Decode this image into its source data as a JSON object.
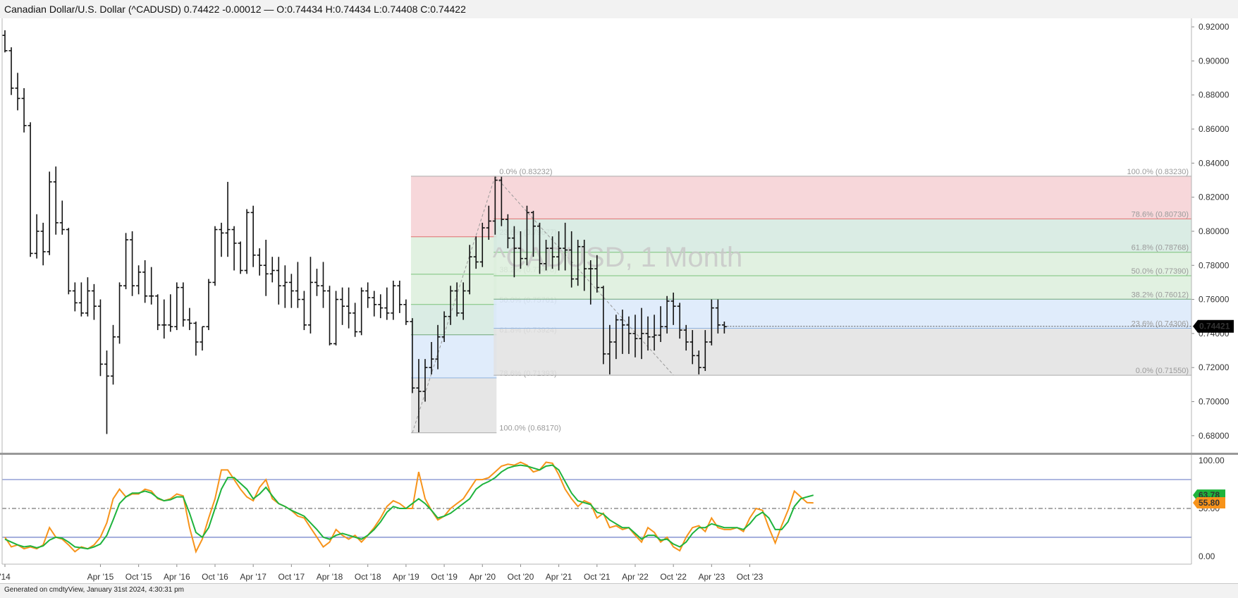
{
  "header": {
    "title": "Canadian Dollar/U.S. Dollar (^CADUSD) 0.74422 -0.00012 — O:0.74434 H:0.74434 L:0.74408 C:0.74422"
  },
  "footer": {
    "text": "Generated on cmdtyView, January 31st 2024, 4:30:31 pm"
  },
  "chart_data": {
    "type": "ohlc",
    "watermark": "^CADUSD, 1 Month",
    "price_axis": {
      "ylim": [
        0.67,
        0.925
      ],
      "ticks": [
        "0.92000",
        "0.90000",
        "0.88000",
        "0.86000",
        "0.84000",
        "0.82000",
        "0.80000",
        "0.78000",
        "0.76000",
        "0.74000",
        "0.72000",
        "0.70000",
        "0.68000"
      ],
      "tick_values": [
        0.92,
        0.9,
        0.88,
        0.86,
        0.84,
        0.82,
        0.8,
        0.78,
        0.76,
        0.74,
        0.72,
        0.7,
        0.68
      ]
    },
    "last_price": {
      "label": "0.74421",
      "value": 0.74421
    },
    "x_labels": [
      {
        "label": "'14",
        "index": 0
      },
      {
        "label": "Apr '15",
        "index": 15
      },
      {
        "label": "Oct '15",
        "index": 21
      },
      {
        "label": "Apr '16",
        "index": 27
      },
      {
        "label": "Oct '16",
        "index": 33
      },
      {
        "label": "Apr '17",
        "index": 39
      },
      {
        "label": "Oct '17",
        "index": 45
      },
      {
        "label": "Apr '18",
        "index": 51
      },
      {
        "label": "Oct '18",
        "index": 57
      },
      {
        "label": "Apr '19",
        "index": 63
      },
      {
        "label": "Oct '19",
        "index": 69
      },
      {
        "label": "Apr '20",
        "index": 75
      },
      {
        "label": "Oct '20",
        "index": 81
      },
      {
        "label": "Apr '21",
        "index": 87
      },
      {
        "label": "Oct '21",
        "index": 93
      },
      {
        "label": "Apr '22",
        "index": 99
      },
      {
        "label": "Oct '22",
        "index": 105
      },
      {
        "label": "Apr '23",
        "index": 111
      },
      {
        "label": "Oct '23",
        "index": 117
      }
    ],
    "bars": [
      [
        0.915,
        0.918,
        0.905,
        0.906
      ],
      [
        0.906,
        0.908,
        0.88,
        0.884
      ],
      [
        0.884,
        0.893,
        0.871,
        0.878
      ],
      [
        0.878,
        0.884,
        0.858,
        0.862
      ],
      [
        0.862,
        0.864,
        0.785,
        0.787
      ],
      [
        0.787,
        0.81,
        0.784,
        0.8
      ],
      [
        0.8,
        0.805,
        0.78,
        0.788
      ],
      [
        0.788,
        0.835,
        0.786,
        0.829
      ],
      [
        0.829,
        0.838,
        0.798,
        0.805
      ],
      [
        0.805,
        0.818,
        0.798,
        0.801
      ],
      [
        0.801,
        0.802,
        0.763,
        0.765
      ],
      [
        0.765,
        0.77,
        0.753,
        0.758
      ],
      [
        0.758,
        0.77,
        0.75,
        0.752
      ],
      [
        0.752,
        0.773,
        0.75,
        0.765
      ],
      [
        0.765,
        0.769,
        0.748,
        0.756
      ],
      [
        0.756,
        0.76,
        0.715,
        0.722
      ],
      [
        0.722,
        0.73,
        0.681,
        0.715
      ],
      [
        0.715,
        0.745,
        0.71,
        0.738
      ],
      [
        0.738,
        0.77,
        0.734,
        0.768
      ],
      [
        0.768,
        0.799,
        0.766,
        0.795
      ],
      [
        0.795,
        0.8,
        0.762,
        0.768
      ],
      [
        0.768,
        0.78,
        0.763,
        0.776
      ],
      [
        0.776,
        0.783,
        0.758,
        0.762
      ],
      [
        0.762,
        0.779,
        0.757,
        0.762
      ],
      [
        0.762,
        0.763,
        0.742,
        0.745
      ],
      [
        0.745,
        0.76,
        0.737,
        0.745
      ],
      [
        0.745,
        0.763,
        0.741,
        0.744
      ],
      [
        0.744,
        0.77,
        0.742,
        0.767
      ],
      [
        0.767,
        0.77,
        0.744,
        0.748
      ],
      [
        0.748,
        0.755,
        0.742,
        0.746
      ],
      [
        0.746,
        0.747,
        0.727,
        0.735
      ],
      [
        0.735,
        0.744,
        0.73,
        0.744
      ],
      [
        0.744,
        0.772,
        0.742,
        0.77
      ],
      [
        0.77,
        0.803,
        0.768,
        0.801
      ],
      [
        0.801,
        0.805,
        0.785,
        0.799
      ],
      [
        0.799,
        0.829,
        0.785,
        0.801
      ],
      [
        0.801,
        0.803,
        0.777,
        0.793
      ],
      [
        0.793,
        0.794,
        0.775,
        0.777
      ],
      [
        0.777,
        0.813,
        0.775,
        0.811
      ],
      [
        0.811,
        0.815,
        0.779,
        0.786
      ],
      [
        0.786,
        0.79,
        0.774,
        0.78
      ],
      [
        0.78,
        0.795,
        0.762,
        0.775
      ],
      [
        0.775,
        0.785,
        0.77,
        0.777
      ],
      [
        0.777,
        0.785,
        0.757,
        0.768
      ],
      [
        0.768,
        0.78,
        0.755,
        0.77
      ],
      [
        0.77,
        0.775,
        0.755,
        0.765
      ],
      [
        0.765,
        0.782,
        0.755,
        0.76
      ],
      [
        0.76,
        0.765,
        0.742,
        0.745
      ],
      [
        0.745,
        0.785,
        0.74,
        0.77
      ],
      [
        0.77,
        0.778,
        0.762,
        0.768
      ],
      [
        0.768,
        0.782,
        0.755,
        0.765
      ],
      [
        0.765,
        0.768,
        0.733,
        0.734
      ],
      [
        0.734,
        0.765,
        0.733,
        0.76
      ],
      [
        0.76,
        0.767,
        0.745,
        0.756
      ],
      [
        0.756,
        0.767,
        0.743,
        0.752
      ],
      [
        0.752,
        0.758,
        0.738,
        0.741
      ],
      [
        0.741,
        0.767,
        0.739,
        0.765
      ],
      [
        0.765,
        0.77,
        0.755,
        0.761
      ],
      [
        0.761,
        0.765,
        0.75,
        0.757
      ],
      [
        0.757,
        0.763,
        0.749,
        0.755
      ],
      [
        0.755,
        0.767,
        0.748,
        0.752
      ],
      [
        0.752,
        0.771,
        0.748,
        0.768
      ],
      [
        0.768,
        0.771,
        0.752,
        0.757
      ],
      [
        0.757,
        0.76,
        0.745,
        0.747
      ],
      [
        0.747,
        0.749,
        0.705,
        0.708
      ],
      [
        0.708,
        0.725,
        0.682,
        0.706
      ],
      [
        0.706,
        0.725,
        0.7,
        0.72
      ],
      [
        0.72,
        0.735,
        0.716,
        0.725
      ],
      [
        0.725,
        0.745,
        0.719,
        0.738
      ],
      [
        0.738,
        0.753,
        0.735,
        0.75
      ],
      [
        0.75,
        0.768,
        0.745,
        0.765
      ],
      [
        0.765,
        0.77,
        0.75,
        0.752
      ],
      [
        0.752,
        0.77,
        0.748,
        0.765
      ],
      [
        0.765,
        0.792,
        0.763,
        0.785
      ],
      [
        0.785,
        0.797,
        0.778,
        0.782
      ],
      [
        0.782,
        0.805,
        0.779,
        0.802
      ],
      [
        0.802,
        0.815,
        0.795,
        0.806
      ],
      [
        0.806,
        0.832,
        0.798,
        0.83
      ],
      [
        0.83,
        0.832,
        0.803,
        0.807
      ],
      [
        0.807,
        0.81,
        0.79,
        0.796
      ],
      [
        0.796,
        0.803,
        0.773,
        0.79
      ],
      [
        0.79,
        0.8,
        0.778,
        0.784
      ],
      [
        0.784,
        0.815,
        0.78,
        0.811
      ],
      [
        0.811,
        0.812,
        0.785,
        0.803
      ],
      [
        0.803,
        0.805,
        0.775,
        0.781
      ],
      [
        0.781,
        0.795,
        0.777,
        0.79
      ],
      [
        0.79,
        0.797,
        0.778,
        0.785
      ],
      [
        0.785,
        0.8,
        0.777,
        0.79
      ],
      [
        0.79,
        0.805,
        0.777,
        0.789
      ],
      [
        0.789,
        0.8,
        0.767,
        0.772
      ],
      [
        0.772,
        0.795,
        0.768,
        0.791
      ],
      [
        0.791,
        0.795,
        0.765,
        0.778
      ],
      [
        0.778,
        0.783,
        0.757,
        0.778
      ],
      [
        0.778,
        0.786,
        0.764,
        0.767
      ],
      [
        0.767,
        0.768,
        0.722,
        0.728
      ],
      [
        0.728,
        0.745,
        0.716,
        0.735
      ],
      [
        0.735,
        0.751,
        0.725,
        0.748
      ],
      [
        0.748,
        0.754,
        0.728,
        0.745
      ],
      [
        0.745,
        0.75,
        0.728,
        0.74
      ],
      [
        0.74,
        0.751,
        0.726,
        0.737
      ],
      [
        0.737,
        0.755,
        0.725,
        0.74
      ],
      [
        0.74,
        0.75,
        0.73,
        0.738
      ],
      [
        0.738,
        0.751,
        0.73,
        0.739
      ],
      [
        0.739,
        0.756,
        0.735,
        0.744
      ],
      [
        0.744,
        0.762,
        0.74,
        0.759
      ],
      [
        0.759,
        0.764,
        0.745,
        0.756
      ],
      [
        0.756,
        0.758,
        0.737,
        0.742
      ],
      [
        0.742,
        0.745,
        0.73,
        0.735
      ],
      [
        0.735,
        0.742,
        0.722,
        0.727
      ],
      [
        0.727,
        0.73,
        0.716,
        0.72
      ],
      [
        0.72,
        0.742,
        0.718,
        0.735
      ],
      [
        0.735,
        0.76,
        0.733,
        0.755
      ],
      [
        0.755,
        0.76,
        0.74,
        0.745
      ],
      [
        0.745,
        0.747,
        0.74,
        0.744
      ]
    ],
    "fib_left": {
      "start_index": 64,
      "end_index": 77,
      "low": 0.6817,
      "high": 0.83232,
      "levels": [
        {
          "pct": 0,
          "label": "0.0% (0.83232)"
        },
        {
          "pct": 0.236,
          "label": "23.6% (0.79677)"
        },
        {
          "pct": 0.382,
          "label": "38.2% (0.77478)"
        },
        {
          "pct": 0.5,
          "label": "50.0% (0.75701)"
        },
        {
          "pct": 0.618,
          "label": "61.8% (0.73924)"
        },
        {
          "pct": 0.786,
          "label": "78.6% (0.71393)"
        },
        {
          "pct": 1,
          "label": "100.0% (0.68170)"
        }
      ]
    },
    "fib_right": {
      "start_index": 77,
      "end_index": 105,
      "high": 0.8323,
      "low": 0.7155,
      "levels": [
        {
          "pct": 1,
          "label": "100.0% (0.83230)"
        },
        {
          "pct": 0.786,
          "label": "78.6% (0.80730)"
        },
        {
          "pct": 0.618,
          "label": "61.8% (0.78768)"
        },
        {
          "pct": 0.5,
          "label": "50.0% (0.77390)"
        },
        {
          "pct": 0.382,
          "label": "38.2% (0.76012)"
        },
        {
          "pct": 0.236,
          "label": "23.6% (0.74306)"
        },
        {
          "pct": 0,
          "label": "0.0% (0.71550)"
        }
      ]
    },
    "oscillator": {
      "ylim": [
        -8,
        105
      ],
      "ticks": [
        "100.00",
        "50.00",
        "0.00"
      ],
      "tick_values": [
        100,
        50,
        0
      ],
      "upper_band": 80,
      "lower_band": 20,
      "mid_line": 50,
      "k_label": "55.80",
      "d_label": "63.78",
      "k_color": "#f7931a",
      "d_color": "#1eb33c",
      "k": [
        20,
        10,
        12,
        8,
        10,
        8,
        12,
        30,
        20,
        18,
        12,
        5,
        10,
        8,
        12,
        20,
        35,
        60,
        70,
        62,
        65,
        65,
        70,
        68,
        60,
        58,
        60,
        65,
        63,
        30,
        5,
        18,
        40,
        60,
        90,
        90,
        80,
        70,
        62,
        58,
        72,
        80,
        60,
        55,
        52,
        48,
        42,
        40,
        30,
        20,
        10,
        15,
        28,
        22,
        18,
        22,
        15,
        22,
        30,
        40,
        52,
        58,
        55,
        50,
        50,
        88,
        60,
        48,
        38,
        42,
        50,
        55,
        60,
        70,
        80,
        80,
        82,
        88,
        94,
        96,
        95,
        98,
        95,
        88,
        90,
        98,
        97,
        85,
        70,
        60,
        52,
        58,
        55,
        40,
        45,
        30,
        32,
        28,
        30,
        22,
        15,
        30,
        25,
        15,
        20,
        10,
        6,
        20,
        30,
        32,
        26,
        40,
        30,
        28,
        28,
        30,
        26,
        40,
        50,
        48,
        30,
        14,
        32,
        48,
        68,
        62,
        56,
        55.8
      ],
      "d": [
        18,
        15,
        12,
        10,
        11,
        9,
        11,
        17,
        20,
        19,
        15,
        10,
        9,
        8,
        10,
        13,
        22,
        38,
        55,
        62,
        66,
        66,
        68,
        66,
        61,
        58,
        59,
        62,
        62,
        45,
        25,
        20,
        30,
        50,
        70,
        82,
        82,
        76,
        70,
        60,
        65,
        72,
        63,
        55,
        52,
        48,
        45,
        42,
        35,
        28,
        20,
        18,
        22,
        24,
        22,
        20,
        18,
        22,
        28,
        36,
        46,
        52,
        50,
        50,
        55,
        60,
        55,
        48,
        40,
        42,
        45,
        50,
        55,
        60,
        70,
        75,
        78,
        82,
        88,
        92,
        94,
        95,
        94,
        92,
        90,
        94,
        95,
        90,
        78,
        66,
        58,
        56,
        54,
        46,
        44,
        38,
        34,
        30,
        30,
        24,
        18,
        22,
        22,
        17,
        18,
        13,
        10,
        15,
        24,
        30,
        30,
        34,
        32,
        30,
        30,
        30,
        28,
        34,
        42,
        46,
        40,
        28,
        28,
        36,
        52,
        60,
        62,
        63.78
      ]
    }
  }
}
